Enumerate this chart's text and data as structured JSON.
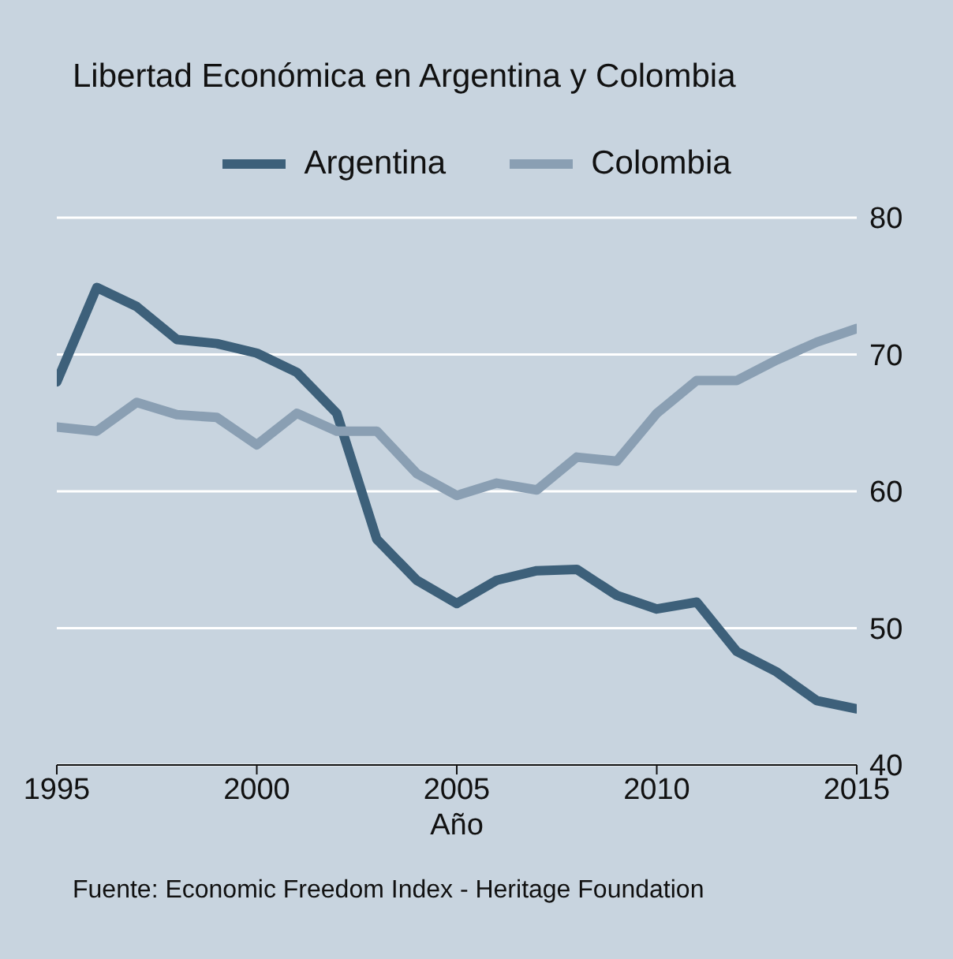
{
  "chart_data": {
    "type": "line",
    "title": "Libertad Económica en Argentina y Colombia",
    "xlabel": "Año",
    "annotations": [
      "Fuente: Economic Freedom Index - Heritage Foundation"
    ],
    "x": [
      1995,
      1996,
      1997,
      1998,
      1999,
      2000,
      2001,
      2002,
      2003,
      2004,
      2005,
      2006,
      2007,
      2008,
      2009,
      2010,
      2011,
      2012,
      2013,
      2014,
      2015
    ],
    "series": [
      {
        "name": "Argentina",
        "color": "#3d607a",
        "values": [
          68.0,
          74.9,
          73.5,
          71.1,
          70.8,
          70.1,
          68.7,
          65.7,
          56.5,
          53.5,
          51.8,
          53.5,
          54.2,
          54.3,
          52.4,
          51.4,
          51.9,
          48.3,
          46.8,
          44.7,
          44.1
        ]
      },
      {
        "name": "Colombia",
        "color": "#8a9fb3",
        "values": [
          64.7,
          64.4,
          66.5,
          65.6,
          65.4,
          63.4,
          65.7,
          64.4,
          64.4,
          61.3,
          59.7,
          60.6,
          60.1,
          62.5,
          62.2,
          65.7,
          68.1,
          68.1,
          69.6,
          70.9,
          71.9
        ]
      }
    ],
    "xlim": [
      1995,
      2015
    ],
    "xticks": [
      1995,
      2000,
      2005,
      2010,
      2015
    ],
    "ylim": [
      40,
      80
    ],
    "yticks": [
      40,
      50,
      60,
      70,
      80
    ],
    "grid": "y",
    "legend": "top",
    "marker": "none",
    "line_style": "solid"
  }
}
